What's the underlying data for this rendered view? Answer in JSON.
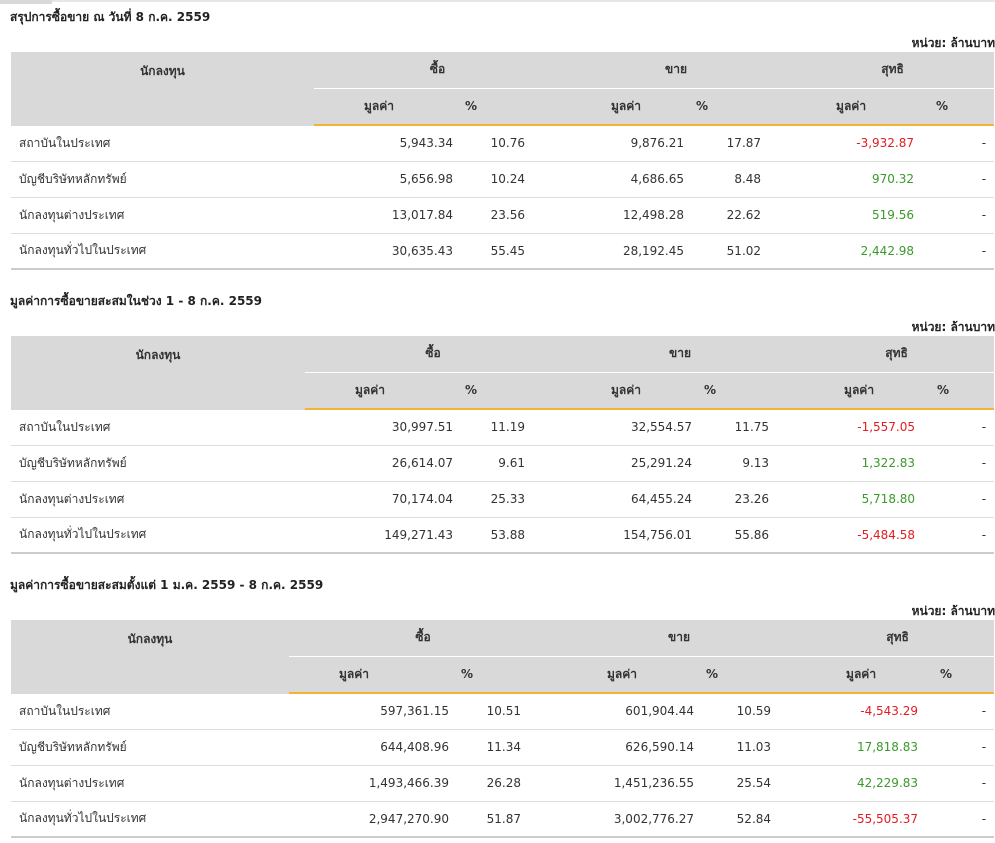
{
  "unit_label": "หน่วย: ล้านบาท",
  "headers": {
    "investor": "นักลงทุน",
    "buy": "ซื้อ",
    "sell": "ขาย",
    "net": "สุทธิ",
    "value": "มูลค่า",
    "percent": "%"
  },
  "colors": {
    "negative": "#e31b23",
    "positive": "#3a9a2a",
    "header_bg": "#d9d9d9",
    "accent": "#f5b335"
  },
  "sections": [
    {
      "title": "สรุปการซื้อขาย ณ วันที่ 8 ก.ค. 2559",
      "rows": [
        {
          "investor": "สถาบันในประเทศ",
          "buy_value": "5,943.34",
          "buy_pct": "10.76",
          "sell_value": "9,876.21",
          "sell_pct": "17.87",
          "net_value": "-3,932.87",
          "net_pct": "-"
        },
        {
          "investor": "บัญชีบริษัทหลักทรัพย์",
          "buy_value": "5,656.98",
          "buy_pct": "10.24",
          "sell_value": "4,686.65",
          "sell_pct": "8.48",
          "net_value": "970.32",
          "net_pct": "-"
        },
        {
          "investor": "นักลงทุนต่างประเทศ",
          "buy_value": "13,017.84",
          "buy_pct": "23.56",
          "sell_value": "12,498.28",
          "sell_pct": "22.62",
          "net_value": "519.56",
          "net_pct": "-"
        },
        {
          "investor": "นักลงทุนทั่วไปในประเทศ",
          "buy_value": "30,635.43",
          "buy_pct": "55.45",
          "sell_value": "28,192.45",
          "sell_pct": "51.02",
          "net_value": "2,442.98",
          "net_pct": "-"
        }
      ]
    },
    {
      "title": "มูลค่าการซื้อขายสะสมในช่วง 1 - 8 ก.ค. 2559",
      "rows": [
        {
          "investor": "สถาบันในประเทศ",
          "buy_value": "30,997.51",
          "buy_pct": "11.19",
          "sell_value": "32,554.57",
          "sell_pct": "11.75",
          "net_value": "-1,557.05",
          "net_pct": "-"
        },
        {
          "investor": "บัญชีบริษัทหลักทรัพย์",
          "buy_value": "26,614.07",
          "buy_pct": "9.61",
          "sell_value": "25,291.24",
          "sell_pct": "9.13",
          "net_value": "1,322.83",
          "net_pct": "-"
        },
        {
          "investor": "นักลงทุนต่างประเทศ",
          "buy_value": "70,174.04",
          "buy_pct": "25.33",
          "sell_value": "64,455.24",
          "sell_pct": "23.26",
          "net_value": "5,718.80",
          "net_pct": "-"
        },
        {
          "investor": "นักลงทุนทั่วไปในประเทศ",
          "buy_value": "149,271.43",
          "buy_pct": "53.88",
          "sell_value": "154,756.01",
          "sell_pct": "55.86",
          "net_value": "-5,484.58",
          "net_pct": "-"
        }
      ]
    },
    {
      "title": "มูลค่าการซื้อขายสะสมตั้งแต่ 1 ม.ค. 2559 - 8 ก.ค. 2559",
      "rows": [
        {
          "investor": "สถาบันในประเทศ",
          "buy_value": "597,361.15",
          "buy_pct": "10.51",
          "sell_value": "601,904.44",
          "sell_pct": "10.59",
          "net_value": "-4,543.29",
          "net_pct": "-"
        },
        {
          "investor": "บัญชีบริษัทหลักทรัพย์",
          "buy_value": "644,408.96",
          "buy_pct": "11.34",
          "sell_value": "626,590.14",
          "sell_pct": "11.03",
          "net_value": "17,818.83",
          "net_pct": "-"
        },
        {
          "investor": "นักลงทุนต่างประเทศ",
          "buy_value": "1,493,466.39",
          "buy_pct": "26.28",
          "sell_value": "1,451,236.55",
          "sell_pct": "25.54",
          "net_value": "42,229.83",
          "net_pct": "-"
        },
        {
          "investor": "นักลงทุนทั่วไปในประเทศ",
          "buy_value": "2,947,270.90",
          "buy_pct": "51.87",
          "sell_value": "3,002,776.27",
          "sell_pct": "52.84",
          "net_value": "-55,505.37",
          "net_pct": "-"
        }
      ]
    }
  ]
}
